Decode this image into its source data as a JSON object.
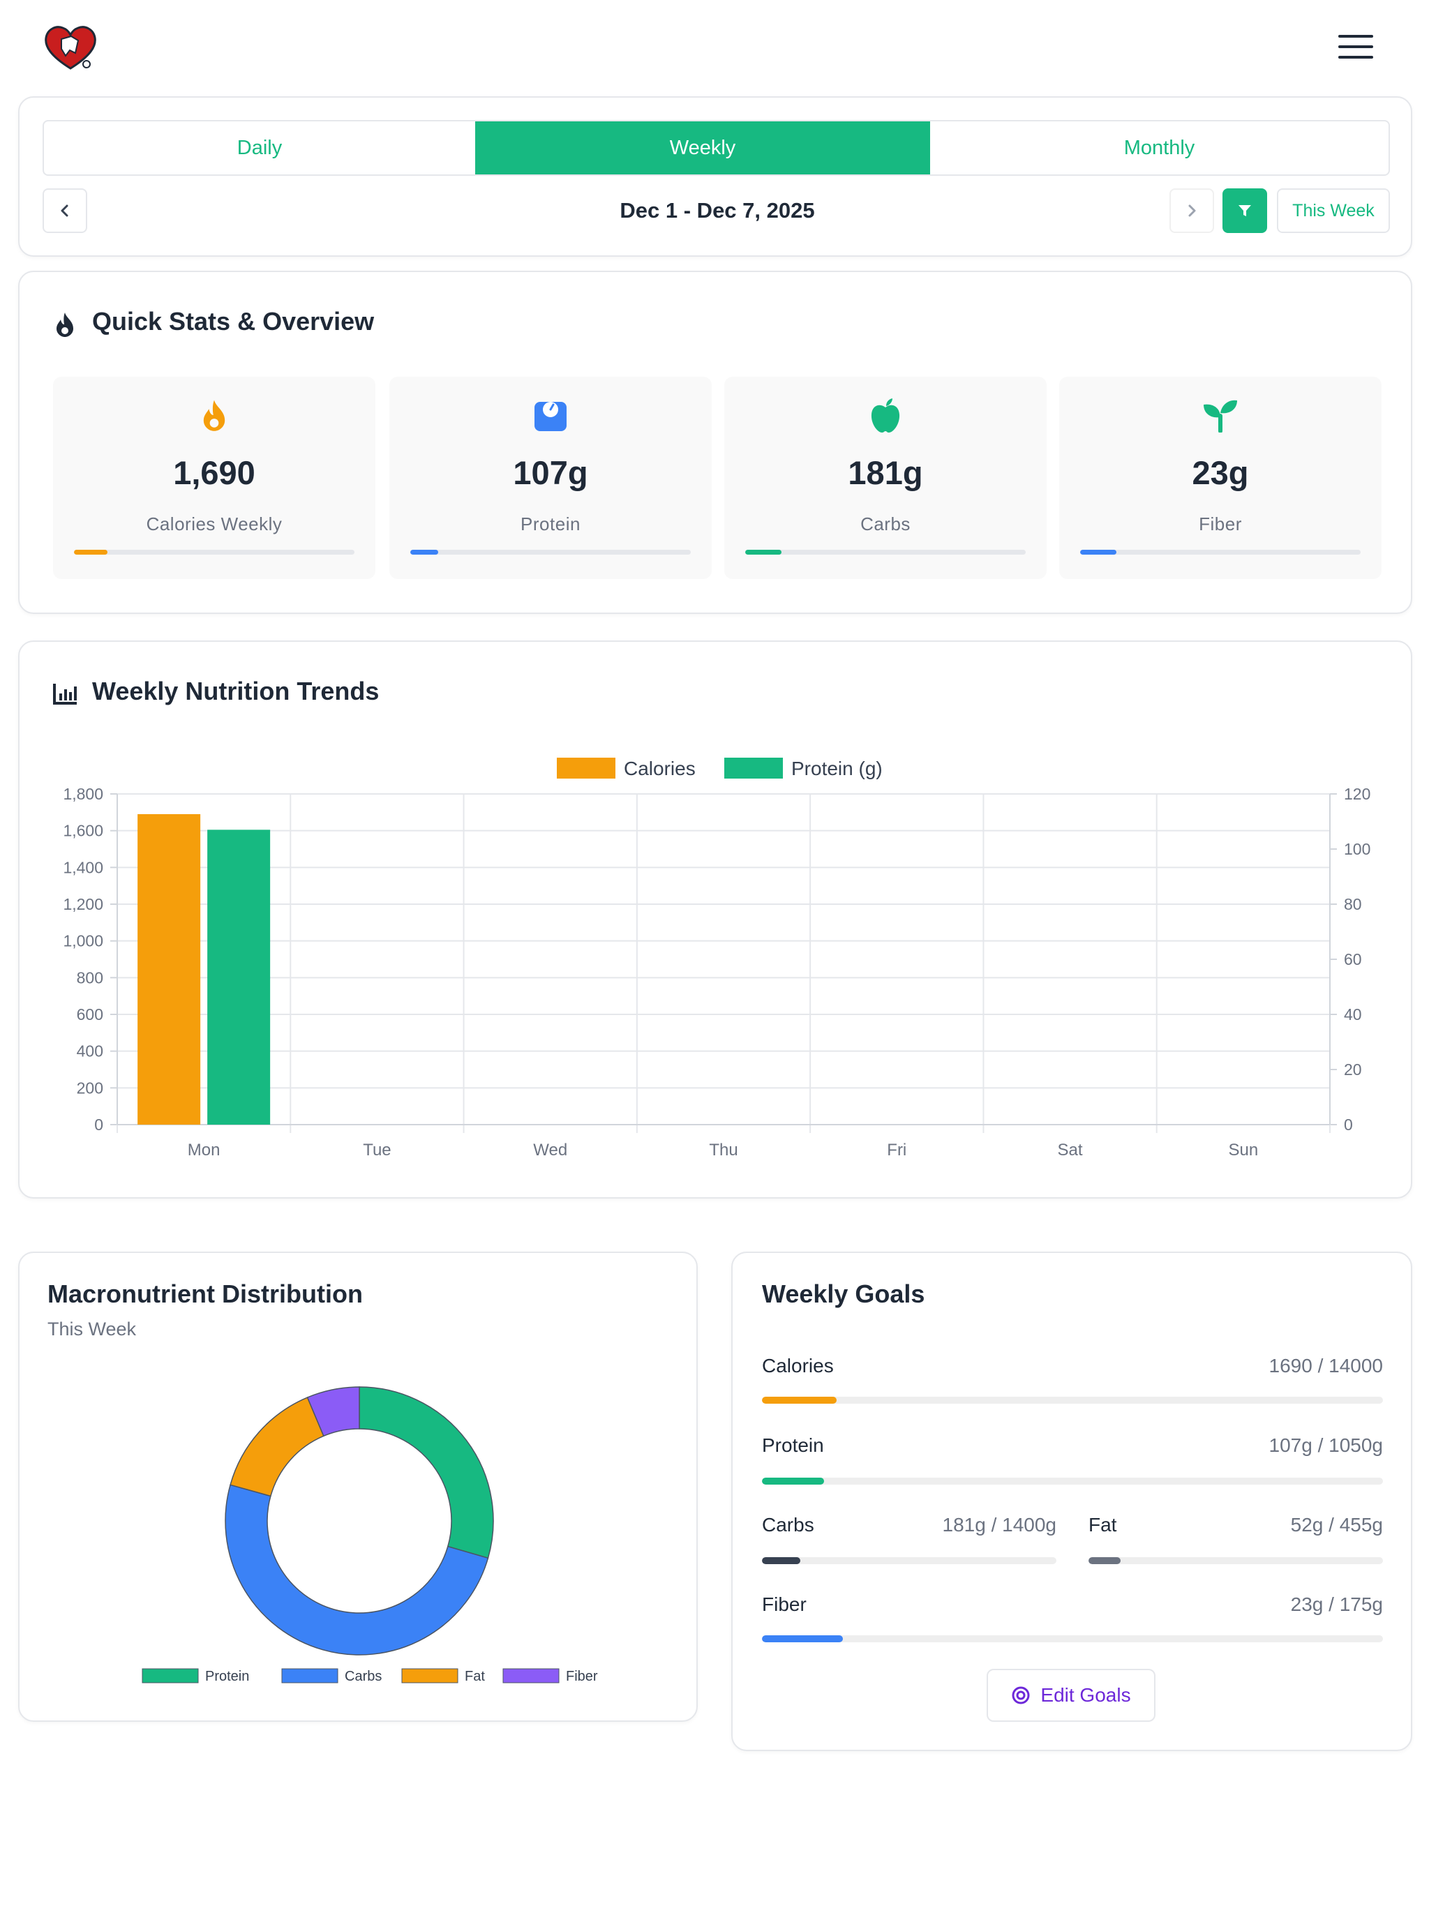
{
  "header": {
    "logo_icon": "heart-logo-icon",
    "menu_icon": "hamburger-menu-icon"
  },
  "period": {
    "tabs": [
      "Daily",
      "Weekly",
      "Monthly"
    ],
    "active_tab": "Weekly",
    "date_range": "Dec 1 - Dec 7, 2025",
    "this_week_label": "This Week"
  },
  "quick_stats": {
    "title": "Quick Stats & Overview",
    "items": [
      {
        "value": "1,690",
        "label": "Calories Weekly",
        "icon": "flame-icon",
        "color": "#f59e0b",
        "progress": 0.12
      },
      {
        "value": "107g",
        "label": "Protein",
        "icon": "scale-icon",
        "color": "#3b82f6",
        "progress": 0.1
      },
      {
        "value": "181g",
        "label": "Carbs",
        "icon": "apple-icon",
        "color": "#17b981",
        "progress": 0.13
      },
      {
        "value": "23g",
        "label": "Fiber",
        "icon": "sprout-icon",
        "color": "#17b981",
        "progress": 0.13
      }
    ]
  },
  "trends": {
    "title": "Weekly Nutrition Trends"
  },
  "chart_data": [
    {
      "type": "bar",
      "categories": [
        "Mon",
        "Tue",
        "Wed",
        "Thu",
        "Fri",
        "Sat",
        "Sun"
      ],
      "series": [
        {
          "name": "Calories",
          "axis": "left",
          "color": "#f59e0b",
          "values": [
            1690,
            0,
            0,
            0,
            0,
            0,
            0
          ]
        },
        {
          "name": "Protein (g)",
          "axis": "right",
          "color": "#17b981",
          "values": [
            107,
            0,
            0,
            0,
            0,
            0,
            0
          ]
        }
      ],
      "ylim_left": [
        0,
        1800
      ],
      "ylim_right": [
        0,
        120
      ],
      "yticks_left": [
        "0",
        "200",
        "400",
        "600",
        "800",
        "1,000",
        "1,200",
        "1,400",
        "1,600",
        "1,800"
      ],
      "yticks_right": [
        "0",
        "20",
        "40",
        "60",
        "80",
        "100",
        "120"
      ],
      "legend": "top-center",
      "grid": true
    },
    {
      "type": "pie",
      "subtype": "doughnut",
      "labels": [
        "Protein",
        "Carbs",
        "Fat",
        "Fiber"
      ],
      "values": [
        107,
        181,
        52,
        23
      ],
      "colors": [
        "#17b981",
        "#3b82f6",
        "#f59e0b",
        "#8b5cf6"
      ],
      "legend": "bottom"
    }
  ],
  "macro": {
    "title": "Macronutrient Distribution",
    "subtitle": "This Week"
  },
  "goals": {
    "title": "Weekly Goals",
    "items": [
      {
        "name": "Calories",
        "value": "1690 / 14000",
        "progress": 0.12,
        "color": "#f59e0b"
      },
      {
        "name": "Protein",
        "value": "107g / 1050g",
        "progress": 0.1,
        "color": "#17b981"
      },
      {
        "name": "Carbs",
        "value": "181g / 1400g",
        "progress": 0.13,
        "color": "#374151"
      },
      {
        "name": "Fat",
        "value": "52g / 455g",
        "progress": 0.11,
        "color": "#6b7280"
      },
      {
        "name": "Fiber",
        "value": "23g / 175g",
        "progress": 0.13,
        "color": "#3b82f6"
      }
    ],
    "edit_label": "Edit Goals"
  }
}
